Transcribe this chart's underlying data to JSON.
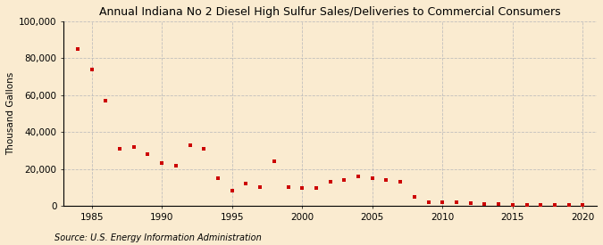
{
  "title": "Annual Indiana No 2 Diesel High Sulfur Sales/Deliveries to Commercial Consumers",
  "ylabel": "Thousand Gallons",
  "source": "Source: U.S. Energy Information Administration",
  "years": [
    1984,
    1985,
    1986,
    1987,
    1988,
    1989,
    1990,
    1991,
    1992,
    1993,
    1994,
    1995,
    1996,
    1997,
    1998,
    1999,
    2000,
    2001,
    2002,
    2003,
    2004,
    2005,
    2006,
    2007,
    2008,
    2009,
    2010,
    2011,
    2012,
    2013,
    2014,
    2015,
    2016,
    2017,
    2018,
    2019,
    2020
  ],
  "values": [
    85000,
    74000,
    57000,
    31000,
    32000,
    28000,
    23000,
    22000,
    33000,
    31000,
    15000,
    8500,
    12000,
    10000,
    24000,
    10000,
    9500,
    9500,
    13000,
    14000,
    16000,
    15000,
    14000,
    13000,
    5000,
    2000,
    2000,
    2000,
    1500,
    1000,
    1000,
    500,
    500,
    500,
    500,
    500,
    500
  ],
  "marker_color": "#cc0000",
  "marker": "s",
  "marker_size": 3.5,
  "bg_color": "#faebd0",
  "plot_bg_color": "#faebd0",
  "grid_color": "#bbbbbb",
  "ylim": [
    0,
    100000
  ],
  "yticks": [
    0,
    20000,
    40000,
    60000,
    80000,
    100000
  ],
  "ytick_labels": [
    "0",
    "20,000",
    "40,000",
    "60,000",
    "80,000",
    "100,000"
  ],
  "xlim": [
    1983,
    2021
  ],
  "xticks": [
    1985,
    1990,
    1995,
    2000,
    2005,
    2010,
    2015,
    2020
  ],
  "title_fontsize": 9,
  "axis_fontsize": 7.5,
  "source_fontsize": 7
}
